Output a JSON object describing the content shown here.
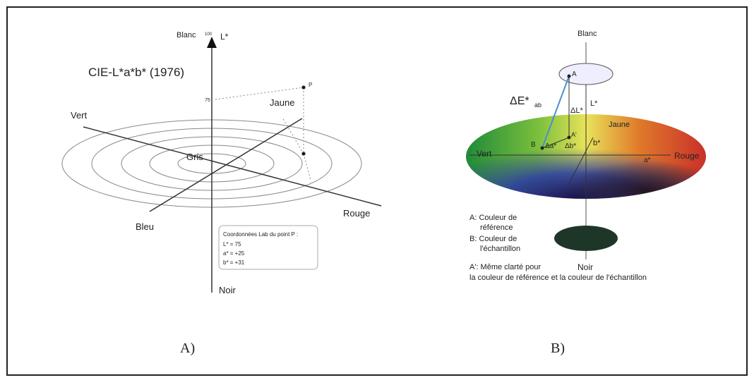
{
  "panel_a": {
    "caption": "A)",
    "title": "CIE-L*a*b* (1976)",
    "blanc": "Blanc",
    "l_max": "100",
    "l_axis": "L*",
    "p_label": "P",
    "l_value": "75",
    "jaune": "Jaune",
    "vert": "Vert",
    "gris": "Gris",
    "bleu": "Bleu",
    "rouge": "Rouge",
    "noir": "Noir",
    "box": {
      "title": "Coordonnées Lab du point P :",
      "lines": [
        "L* = 75",
        "a* = +25",
        "b* = +31"
      ]
    }
  },
  "panel_b": {
    "caption": "B)",
    "blanc": "Blanc",
    "point_a": "A",
    "delta_e": {
      "main": "ΔE*",
      "sub": "ab"
    },
    "delta_l": "ΔL*",
    "l_axis": "L*",
    "jaune": "Jaune",
    "point_a_prime": "A'",
    "point_b": "B",
    "delta_a": "Δa*",
    "delta_b": "Δb*",
    "b_axis": "b*",
    "vert": "Vert",
    "a_axis": "a*",
    "rouge": "Rouge",
    "noir": "Noir",
    "legend": [
      "A: Couleur de",
      "référence",
      "B: Couleur de",
      "l'échantillon",
      "A': Même clarté pour",
      "la couleur de référence et la couleur de l'échantillon"
    ]
  }
}
